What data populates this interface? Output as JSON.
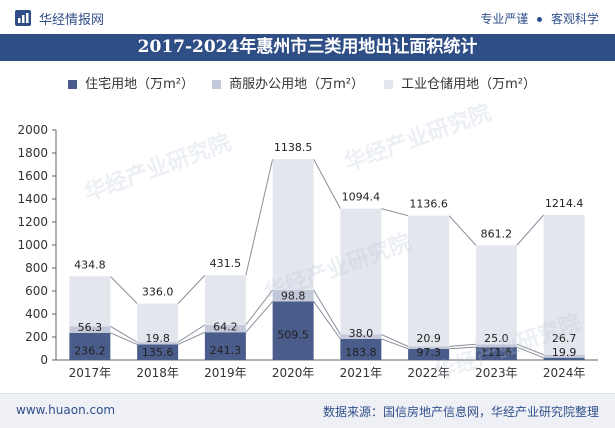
{
  "header": {
    "brand": "华经情报网",
    "tagline_left": "专业严谨",
    "tagline_right": "客观科学"
  },
  "title": "2017-2024年惠州市三类用地出让面积统计",
  "footer": {
    "site": "www.huaon.com",
    "source": "数据来源：国信房地产信息网，华经产业研究院整理"
  },
  "watermark": "华经产业研究院",
  "colors": {
    "residential": "#4a5c8a",
    "commercial": "#c3c9d9",
    "industrial": "#e4e6ee",
    "title_bg": "#2f4e86",
    "connector": "#8a8f9a"
  },
  "chart_data": {
    "type": "bar",
    "stacked": true,
    "categories": [
      "2017年",
      "2018年",
      "2019年",
      "2020年",
      "2021年",
      "2022年",
      "2023年",
      "2024年"
    ],
    "series": [
      {
        "name": "住宅用地（万m²）",
        "values": [
          236.2,
          135.6,
          241.3,
          509.5,
          183.8,
          97.3,
          111.6,
          19.9
        ]
      },
      {
        "name": "商服办公用地（万m²）",
        "values": [
          56.3,
          19.8,
          64.2,
          98.8,
          38.0,
          20.9,
          25.0,
          26.7
        ]
      },
      {
        "name": "工业仓储用地（万m²）",
        "values": [
          434.8,
          336.0,
          431.5,
          1138.5,
          1094.4,
          1136.6,
          861.2,
          1214.4
        ]
      }
    ],
    "ylim": [
      0,
      2000
    ],
    "yticks": [
      0,
      200,
      400,
      600,
      800,
      1000,
      1200,
      1400,
      1600,
      1800,
      2000
    ],
    "legend_position": "top",
    "grid": false
  }
}
